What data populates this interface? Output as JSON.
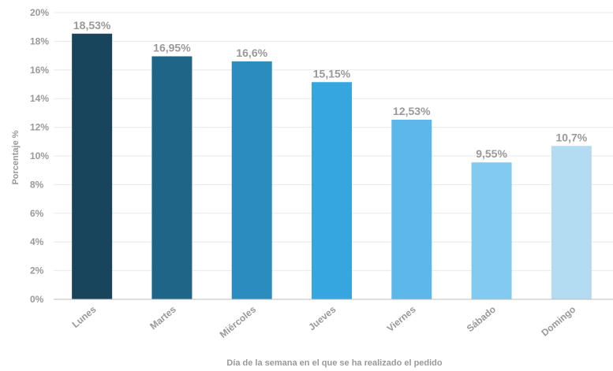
{
  "chart_data": {
    "type": "bar",
    "title": "",
    "xlabel": "Día de la semana en el que se ha realizado el pedido",
    "ylabel": "Porcentaje %",
    "ylim": [
      0,
      20
    ],
    "yticks": [
      0,
      2,
      4,
      6,
      8,
      10,
      12,
      14,
      16,
      18,
      20
    ],
    "ytick_labels": [
      "0%",
      "2%",
      "4%",
      "6%",
      "8%",
      "10%",
      "12%",
      "14%",
      "16%",
      "18%",
      "20%"
    ],
    "categories": [
      "Lunes",
      "Martes",
      "Miércoles",
      "Jueves",
      "Viernes",
      "Sábado",
      "Domingo"
    ],
    "values": [
      18.53,
      16.95,
      16.6,
      15.15,
      12.53,
      9.55,
      10.7
    ],
    "value_labels": [
      "18,53%",
      "16,95%",
      "16,6%",
      "15,15%",
      "12,53%",
      "9,55%",
      "10,7%"
    ],
    "colors": [
      "#18445c",
      "#1f6587",
      "#2b8dbf",
      "#35a6e0",
      "#5bb8e8",
      "#82caef",
      "#b3dcf3"
    ],
    "grid": true,
    "legend": "none"
  }
}
